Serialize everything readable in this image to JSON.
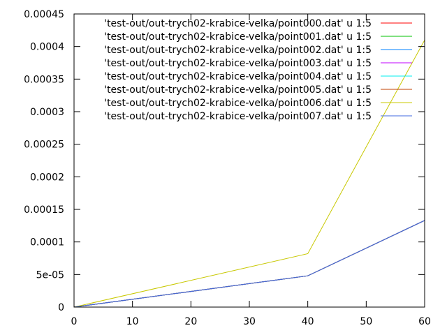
{
  "chart_data": {
    "type": "line",
    "title": "",
    "xlabel": "",
    "ylabel": "",
    "xlim": [
      0,
      60
    ],
    "ylim": [
      0,
      0.00045
    ],
    "x_ticks": [
      {
        "value": 0,
        "label": "0"
      },
      {
        "value": 10,
        "label": "10"
      },
      {
        "value": 20,
        "label": "20"
      },
      {
        "value": 30,
        "label": "30"
      },
      {
        "value": 40,
        "label": "40"
      },
      {
        "value": 50,
        "label": "50"
      },
      {
        "value": 60,
        "label": "60"
      }
    ],
    "y_ticks": [
      {
        "value": 0,
        "label": "0"
      },
      {
        "value": 5e-05,
        "label": "5e-05"
      },
      {
        "value": 0.0001,
        "label": "0.0001"
      },
      {
        "value": 0.00015,
        "label": "0.00015"
      },
      {
        "value": 0.0002,
        "label": "0.0002"
      },
      {
        "value": 0.00025,
        "label": "0.00025"
      },
      {
        "value": 0.0003,
        "label": "0.0003"
      },
      {
        "value": 0.00035,
        "label": "0.00035"
      },
      {
        "value": 0.0004,
        "label": "0.0004"
      },
      {
        "value": 0.00045,
        "label": "0.00045"
      }
    ],
    "grid": false,
    "legend_position": "top-right",
    "series": [
      {
        "name": "'test-out/out-trych02-krabice-velka/point000.dat' u 1:5",
        "color": "#ff0000",
        "x": [
          0,
          40,
          60
        ],
        "y": [
          0,
          4.8e-05,
          0.000133
        ]
      },
      {
        "name": "'test-out/out-trych02-krabice-velka/point001.dat' u 1:5",
        "color": "#00c000",
        "x": [
          0,
          40,
          60
        ],
        "y": [
          0,
          4.8e-05,
          0.000133
        ]
      },
      {
        "name": "'test-out/out-trych02-krabice-velka/point002.dat' u 1:5",
        "color": "#0080ff",
        "x": [
          0,
          40,
          60
        ],
        "y": [
          0,
          4.8e-05,
          0.000133
        ]
      },
      {
        "name": "'test-out/out-trych02-krabice-velka/point003.dat' u 1:5",
        "color": "#c000ff",
        "x": [
          0,
          40,
          60
        ],
        "y": [
          0,
          4.8e-05,
          0.000133
        ]
      },
      {
        "name": "'test-out/out-trych02-krabice-velka/point004.dat' u 1:5",
        "color": "#00eeee",
        "x": [
          0,
          40,
          60
        ],
        "y": [
          0,
          4.8e-05,
          0.000133
        ]
      },
      {
        "name": "'test-out/out-trych02-krabice-velka/point005.dat' u 1:5",
        "color": "#c04000",
        "x": [
          0,
          40,
          60
        ],
        "y": [
          0,
          4.8e-05,
          0.000133
        ]
      },
      {
        "name": "'test-out/out-trych02-krabice-velka/point006.dat' u 1:5",
        "color": "#c8c800",
        "x": [
          0,
          40,
          60
        ],
        "y": [
          0,
          8.2e-05,
          0.00041
        ]
      },
      {
        "name": "'test-out/out-trych02-krabice-velka/point007.dat' u 1:5",
        "color": "#4169e1",
        "x": [
          0,
          40,
          60
        ],
        "y": [
          0,
          4.8e-05,
          0.000133
        ]
      }
    ]
  }
}
